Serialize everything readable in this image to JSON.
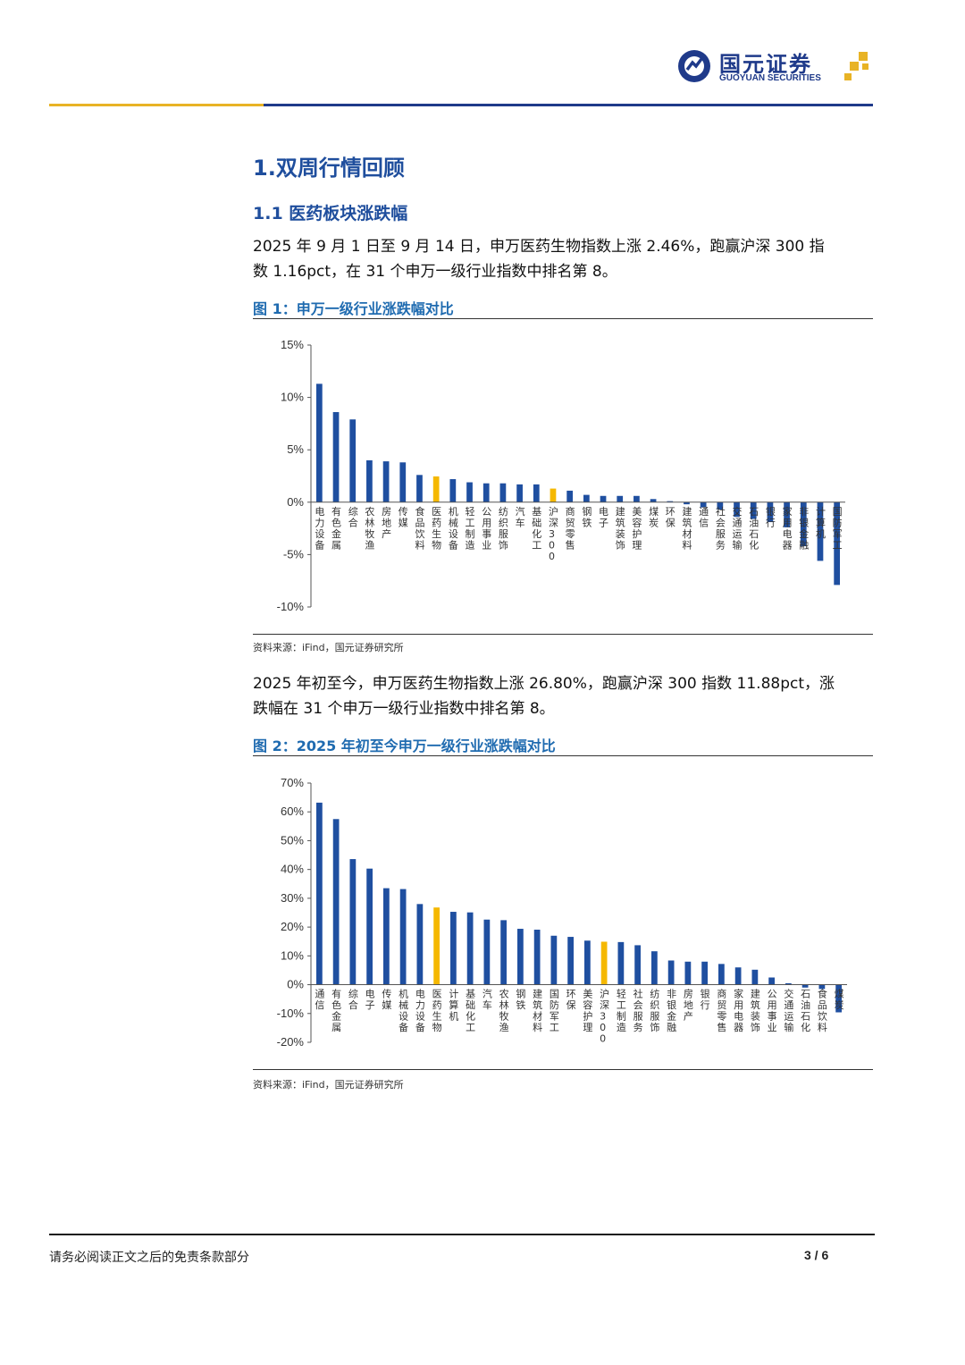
{
  "header": {
    "brand_cn": "国元证券",
    "brand_en": "GUOYUAN SECURITIES",
    "colors": {
      "gold": "#e8b325",
      "navy": "#1f3a8a"
    }
  },
  "section_title": "1.双周行情回顾",
  "subsection_title": "1.1 医药板块涨跌幅",
  "para1": {
    "line1": "2025 年 9 月 1 日至 9 月 14 日，申万医药生物指数上涨 2.46%，跑赢沪深 300 指",
    "line2": "数 1.16pct，在 31 个申万一级行业指数中排名第 8。"
  },
  "figure1": {
    "title": "图 1：申万一级行业涨跌幅对比",
    "source": "资料来源：iFind，国元证券研究所"
  },
  "para2": {
    "line1": "2025 年初至今，申万医药生物指数上涨 26.80%，跑赢沪深 300 指数 11.88pct，涨",
    "line2": "跌幅在 31 个申万一级行业指数中排名第 8。"
  },
  "figure2": {
    "title": "图 2：2025 年初至今申万一级行业涨跌幅对比",
    "source": "资料来源：iFind，国元证券研究所"
  },
  "chart_data": [
    {
      "type": "bar",
      "title": "图 1：申万一级行业涨跌幅对比",
      "ylim": [
        -10,
        15
      ],
      "yticks": [
        "15%",
        "10%",
        "5%",
        "0%",
        "-5%",
        "-10%"
      ],
      "ytick_values": [
        15,
        10,
        5,
        0,
        -5,
        -10
      ],
      "grid": false,
      "categories": [
        "电力设备",
        "有色金属",
        "综合",
        "农林牧渔",
        "房地产",
        "传媒",
        "食品饮料",
        "医药生物",
        "机械设备",
        "轻工制造",
        "公用事业",
        "纺织服饰",
        "汽车",
        "基础化工",
        "沪深300",
        "商贸零售",
        "钢铁",
        "电子",
        "建筑装饰",
        "美容护理",
        "煤炭",
        "环保",
        "建筑材料",
        "通信",
        "社会服务",
        "交通运输",
        "石油石化",
        "银行",
        "家用电器",
        "非银金融",
        "计算机",
        "国防军工"
      ],
      "values": [
        11.3,
        8.6,
        7.9,
        4.0,
        3.9,
        3.8,
        2.6,
        2.46,
        2.2,
        1.9,
        1.8,
        1.8,
        1.7,
        1.7,
        1.3,
        1.1,
        0.7,
        0.6,
        0.6,
        0.6,
        0.3,
        0.1,
        -0.2,
        -0.5,
        -0.7,
        -1.4,
        -1.6,
        -1.9,
        -2.4,
        -4.2,
        -5.6,
        -7.9
      ],
      "highlight": [
        "医药生物",
        "沪深300"
      ],
      "colors": {
        "default": "#1f4fa0",
        "highlight": "#f5b800"
      }
    },
    {
      "type": "bar",
      "title": "图 2：2025 年初至今申万一级行业涨跌幅对比",
      "ylim": [
        -20,
        70
      ],
      "yticks": [
        "70%",
        "60%",
        "50%",
        "40%",
        "30%",
        "20%",
        "10%",
        "0%",
        "-10%",
        "-20%"
      ],
      "ytick_values": [
        70,
        60,
        50,
        40,
        30,
        20,
        10,
        0,
        -10,
        -20
      ],
      "grid": false,
      "categories": [
        "通信",
        "有色金属",
        "综合",
        "电子",
        "传媒",
        "机械设备",
        "电力设备",
        "医药生物",
        "计算机",
        "基础化工",
        "汽车",
        "农林牧渔",
        "钢铁",
        "建筑材料",
        "国防军工",
        "环保",
        "美容护理",
        "沪深300",
        "轻工制造",
        "社会服务",
        "纺织服饰",
        "非银金融",
        "房地产",
        "银行",
        "商贸零售",
        "家用电器",
        "建筑装饰",
        "公用事业",
        "交通运输",
        "石油石化",
        "食品饮料",
        "煤炭"
      ],
      "values": [
        63.2,
        57.5,
        43.6,
        40.3,
        33.5,
        33.2,
        28.0,
        26.8,
        25.3,
        25.1,
        22.6,
        22.4,
        19.4,
        19.1,
        17.0,
        16.6,
        15.3,
        14.92,
        14.8,
        13.7,
        11.6,
        8.4,
        8.0,
        8.0,
        7.2,
        6.0,
        5.2,
        2.5,
        0.5,
        -1.0,
        -1.5,
        -9.6
      ],
      "highlight": [
        "医药生物",
        "沪深300"
      ],
      "colors": {
        "default": "#1f4fa0",
        "highlight": "#f5b800"
      }
    }
  ],
  "footer": {
    "disclaimer": "请务必阅读正文之后的免责条款部分",
    "page": "3 / 6"
  }
}
